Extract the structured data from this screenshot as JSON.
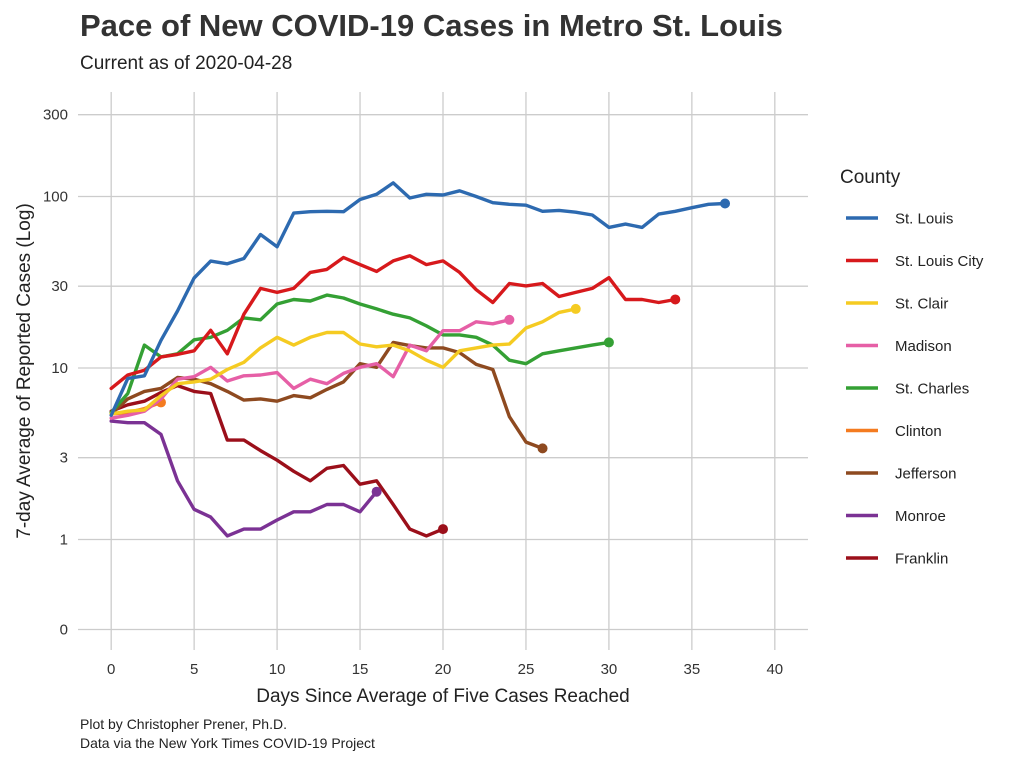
{
  "chart_data": {
    "type": "line",
    "title": "Pace of New COVID-19 Cases in Metro St. Louis",
    "subtitle": "Current as of 2020-04-28",
    "xlabel": "Days Since Average of Five Cases Reached",
    "ylabel": "7-day Average of Reported Cases (Log)",
    "xlim": [
      -2,
      42
    ],
    "x_ticks": [
      0,
      5,
      10,
      15,
      20,
      25,
      30,
      35,
      40
    ],
    "y_scale": "log",
    "y_ticks": [
      0,
      1,
      3,
      10,
      30,
      100,
      300
    ],
    "y_tick_labels": [
      "0",
      "1",
      "3",
      "10",
      "30",
      "100",
      "300"
    ],
    "grid": true,
    "legend_title": "County",
    "legend_position": "right",
    "caption": [
      "Plot by Christopher Prener, Ph.D.",
      "Data via the New York Times COVID-19 Project"
    ],
    "series": [
      {
        "name": "St. Louis",
        "color": "#2d6ab0",
        "x": [
          0,
          1,
          2,
          3,
          4,
          5,
          6,
          7,
          8,
          9,
          10,
          11,
          12,
          13,
          14,
          15,
          16,
          17,
          18,
          19,
          20,
          21,
          22,
          23,
          24,
          25,
          26,
          27,
          28,
          29,
          30,
          31,
          32,
          33,
          34,
          35,
          36,
          37
        ],
        "y": [
          5.3,
          8.7,
          9.0,
          14.5,
          21.5,
          33.5,
          42,
          40.5,
          43.5,
          60,
          51,
          80,
          81.5,
          82,
          81.5,
          96,
          103,
          120,
          98,
          103,
          102,
          108,
          100,
          92,
          90,
          89,
          82,
          83,
          81,
          78,
          66,
          69,
          66,
          79,
          82,
          86,
          90,
          91
        ]
      },
      {
        "name": "St. Louis City",
        "color": "#d7191c",
        "x": [
          0,
          1,
          2,
          3,
          4,
          5,
          6,
          7,
          8,
          9,
          10,
          11,
          12,
          13,
          14,
          15,
          16,
          17,
          18,
          19,
          20,
          21,
          22,
          23,
          24,
          25,
          26,
          27,
          28,
          29,
          30,
          31,
          32,
          33,
          34
        ],
        "y": [
          7.6,
          9.1,
          9.7,
          11.6,
          12,
          12.6,
          16.6,
          12.1,
          20.6,
          29.1,
          27.6,
          29.1,
          36.1,
          37.6,
          44.1,
          40.1,
          36.6,
          42.1,
          45.1,
          40.1,
          42.1,
          36.1,
          28.6,
          24.1,
          31.1,
          30.1,
          31.1,
          26.1,
          27.6,
          29.1,
          33.6,
          25.1,
          25.1,
          24.1,
          25.1
        ]
      },
      {
        "name": "St. Clair",
        "color": "#f5cb22",
        "x": [
          0,
          1,
          2,
          3,
          4,
          5,
          6,
          7,
          8,
          9,
          10,
          11,
          12,
          13,
          14,
          15,
          16,
          17,
          18,
          19,
          20,
          21,
          22,
          23,
          24,
          25,
          26,
          27,
          28
        ],
        "y": [
          5.4,
          5.6,
          5.7,
          6.9,
          8.1,
          8.3,
          8.6,
          9.8,
          10.8,
          13.1,
          15.1,
          13.6,
          15.1,
          16.1,
          16.1,
          13.8,
          13.3,
          13.6,
          12.6,
          11.1,
          10.1,
          12.6,
          13.1,
          13.6,
          13.8,
          17.1,
          18.6,
          21.1,
          22.1
        ]
      },
      {
        "name": "Madison",
        "color": "#e65fa6",
        "x": [
          0,
          1,
          2,
          3,
          4,
          5,
          6,
          7,
          8,
          9,
          10,
          11,
          12,
          13,
          14,
          15,
          16,
          17,
          18,
          19,
          20,
          21,
          22,
          23,
          24
        ],
        "y": [
          5.1,
          5.3,
          5.6,
          6.6,
          8.6,
          8.9,
          10.1,
          8.4,
          9.0,
          9.1,
          9.4,
          7.6,
          8.6,
          8.1,
          9.3,
          10.1,
          10.6,
          8.9,
          13.6,
          12.6,
          16.5,
          16.5,
          18.6,
          18.1,
          19.1
        ]
      },
      {
        "name": "St. Charles",
        "color": "#34a034",
        "x": [
          0,
          1,
          2,
          3,
          4,
          5,
          6,
          7,
          8,
          9,
          10,
          11,
          12,
          13,
          14,
          15,
          16,
          17,
          18,
          19,
          20,
          21,
          22,
          23,
          24,
          25,
          26,
          27,
          28,
          29,
          30
        ],
        "y": [
          5.5,
          7.1,
          13.6,
          11.6,
          12.1,
          14.6,
          15.1,
          16.6,
          19.6,
          19.1,
          23.6,
          25.1,
          24.6,
          26.6,
          25.6,
          23.6,
          22.1,
          20.6,
          19.6,
          17.6,
          15.6,
          15.6,
          15.1,
          13.6,
          11.1,
          10.6,
          12.1,
          12.6,
          13.1,
          13.6,
          14.1
        ]
      },
      {
        "name": "Clinton",
        "color": "#f47b20",
        "x": [
          0,
          1,
          2,
          3
        ],
        "y": [
          5.4,
          5.5,
          5.8,
          6.3
        ]
      },
      {
        "name": "Jefferson",
        "color": "#8e4a20",
        "x": [
          0,
          1,
          2,
          3,
          4,
          5,
          6,
          7,
          8,
          9,
          10,
          11,
          12,
          13,
          14,
          15,
          16,
          17,
          18,
          19,
          20,
          21,
          22,
          23,
          24,
          25,
          26
        ],
        "y": [
          5.4,
          6.6,
          7.3,
          7.6,
          8.8,
          8.6,
          8.1,
          7.3,
          6.5,
          6.6,
          6.4,
          6.9,
          6.7,
          7.5,
          8.3,
          10.6,
          10.1,
          14.1,
          13.5,
          13.1,
          13.1,
          12.3,
          10.5,
          9.8,
          5.2,
          3.7,
          3.4
        ]
      },
      {
        "name": "Monroe",
        "color": "#7b3294",
        "x": [
          0,
          1,
          2,
          3,
          4,
          5,
          6,
          7,
          8,
          9,
          10,
          11,
          12,
          13,
          14,
          15,
          16
        ],
        "y": [
          4.9,
          4.8,
          4.8,
          4.1,
          2.2,
          1.5,
          1.35,
          1.05,
          1.15,
          1.15,
          1.3,
          1.45,
          1.45,
          1.6,
          1.6,
          1.45,
          1.9
        ]
      },
      {
        "name": "Franklin",
        "color": "#9b0f1a",
        "x": [
          0,
          1,
          2,
          3,
          4,
          5,
          6,
          7,
          8,
          9,
          10,
          11,
          12,
          13,
          14,
          15,
          16,
          17,
          18,
          19,
          20
        ],
        "y": [
          5.6,
          6.1,
          6.4,
          7.2,
          7.9,
          7.3,
          7.1,
          3.8,
          3.8,
          3.3,
          2.9,
          2.5,
          2.2,
          2.6,
          2.7,
          2.1,
          2.2,
          1.6,
          1.15,
          1.05,
          1.15
        ]
      }
    ]
  }
}
